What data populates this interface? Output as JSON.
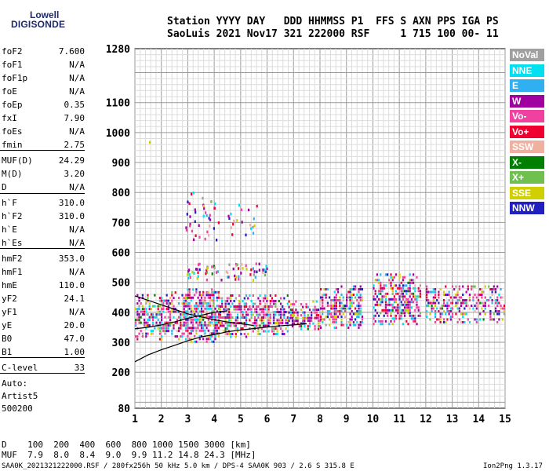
{
  "logo": {
    "line1": "Lowell",
    "line2": "DIGISONDE"
  },
  "header": {
    "line1": "Station YYYY DAY   DDD HHMMSS P1  FFS S AXN PPS IGA PS",
    "line2": "SaoLuis 2021 Nov17 321 222000 RSF     1 715 100 00- 11"
  },
  "params": [
    {
      "label": "foF2",
      "value": "7.600"
    },
    {
      "label": "foF1",
      "value": "N/A"
    },
    {
      "label": "foF1p",
      "value": "N/A"
    },
    {
      "label": "foE",
      "value": "N/A"
    },
    {
      "label": "foEp",
      "value": "0.35"
    },
    {
      "label": "fxI",
      "value": "7.90"
    },
    {
      "label": "foEs",
      "value": "N/A"
    },
    {
      "label": "fmin",
      "value": "2.75"
    },
    {
      "label": "MUF(D)",
      "value": "24.29"
    },
    {
      "label": "M(D)",
      "value": "3.20"
    },
    {
      "label": "D",
      "value": "N/A"
    },
    {
      "label": "h`F",
      "value": "310.0"
    },
    {
      "label": "h`F2",
      "value": "310.0"
    },
    {
      "label": "h`E",
      "value": "N/A"
    },
    {
      "label": "h`Es",
      "value": "N/A"
    },
    {
      "label": "hmF2",
      "value": "353.0"
    },
    {
      "label": "hmF1",
      "value": "N/A"
    },
    {
      "label": "hmE",
      "value": "110.0"
    },
    {
      "label": "yF2",
      "value": "24.1"
    },
    {
      "label": "yF1",
      "value": "N/A"
    },
    {
      "label": "yE",
      "value": "20.0"
    },
    {
      "label": "B0",
      "value": "47.0"
    },
    {
      "label": "B1",
      "value": "1.00"
    },
    {
      "label": "C-level",
      "value": "33"
    }
  ],
  "autoscale": {
    "line1": "Auto:",
    "line2": "Artist5",
    "line3": "500200"
  },
  "legend": [
    {
      "label": "NoVal",
      "color": "#a0a0a0"
    },
    {
      "label": "NNE",
      "color": "#00e0f0"
    },
    {
      "label": "E",
      "color": "#30b0f0"
    },
    {
      "label": "W",
      "color": "#a000a0"
    },
    {
      "label": "Vo-",
      "color": "#f040a0"
    },
    {
      "label": "Vo+",
      "color": "#f00030"
    },
    {
      "label": "SSW",
      "color": "#f0b0a0"
    },
    {
      "label": "X-",
      "color": "#008000"
    },
    {
      "label": "X+",
      "color": "#70c050"
    },
    {
      "label": "SSE",
      "color": "#d0d000"
    },
    {
      "label": "NNW",
      "color": "#2020c0"
    }
  ],
  "muf_table": {
    "d_line": "D    100  200  400  600  800 1000 1500 3000 [km]",
    "muf_line": "MUF  7.9  8.0  8.4  9.0  9.9 11.2 14.8 24.3 [MHz]"
  },
  "footer": {
    "left": "SAA0K_2021321222000.RSF / 280fx256h 50 kHz 5.0 km / DPS-4 SAA0K 903 / 2.6 S 315.8 E",
    "right": "Ion2Png 1.3.17"
  },
  "chart_data": {
    "type": "scatter",
    "title": "",
    "xlabel": "",
    "ylabel": "",
    "xlim": [
      1,
      15
    ],
    "ylim": [
      80,
      1280
    ],
    "x_ticks": [
      1,
      2,
      3,
      4,
      5,
      6,
      7,
      8,
      9,
      10,
      11,
      12,
      13,
      14,
      15
    ],
    "y_ticks": [
      80,
      200,
      300,
      400,
      500,
      600,
      700,
      800,
      900,
      1000,
      1100,
      1280
    ],
    "grid": true,
    "clusters": [
      {
        "x_range": [
          1.0,
          2.9
        ],
        "y_range": [
          310,
          470
        ],
        "density": 0.55
      },
      {
        "x_range": [
          2.9,
          4.2
        ],
        "y_range": [
          300,
          480
        ],
        "density": 0.75
      },
      {
        "x_range": [
          4.2,
          6.8
        ],
        "y_range": [
          320,
          460
        ],
        "density": 0.6
      },
      {
        "x_range": [
          6.8,
          8.0
        ],
        "y_range": [
          340,
          440
        ],
        "density": 0.6
      },
      {
        "x_range": [
          8.0,
          9.6
        ],
        "y_range": [
          350,
          490
        ],
        "density": 0.6
      },
      {
        "x_range": [
          10.0,
          11.8
        ],
        "y_range": [
          360,
          530
        ],
        "density": 0.6
      },
      {
        "x_range": [
          12.0,
          15.0
        ],
        "y_range": [
          370,
          490
        ],
        "density": 0.45
      }
    ],
    "sparse_clusters": [
      {
        "x_range": [
          2.9,
          4.2
        ],
        "y_range": [
          640,
          810
        ],
        "count": 40
      },
      {
        "x_range": [
          4.5,
          5.6
        ],
        "y_range": [
          660,
          770
        ],
        "count": 20
      },
      {
        "x_range": [
          2.9,
          6.0
        ],
        "y_range": [
          510,
          570
        ],
        "count": 70
      },
      {
        "x_range": [
          1.4,
          1.6
        ],
        "y_range": [
          970,
          980
        ],
        "count": 1
      }
    ],
    "traces": [
      {
        "name": "",
        "x": [
          1.0,
          1.5,
          2.0,
          2.5,
          3.0,
          3.5,
          4.0,
          4.5,
          5.0,
          5.5,
          6.0,
          6.5,
          7.0,
          7.5
        ],
        "y": [
          235,
          258,
          275,
          290,
          305,
          318,
          326,
          335,
          341,
          346,
          351,
          355,
          358,
          362
        ]
      },
      {
        "name": "",
        "x": [
          1.0,
          1.5,
          2.0,
          2.5,
          3.0,
          3.5,
          4.0,
          4.5,
          5.0,
          5.5
        ],
        "y": [
          455,
          440,
          425,
          410,
          395,
          385,
          375,
          368,
          362,
          356
        ]
      },
      {
        "name": "",
        "x": [
          1.0,
          1.5,
          2.0,
          2.5,
          3.0,
          3.5,
          4.0,
          4.5
        ],
        "y": [
          345,
          350,
          358,
          368,
          380,
          390,
          400,
          405
        ]
      }
    ]
  }
}
